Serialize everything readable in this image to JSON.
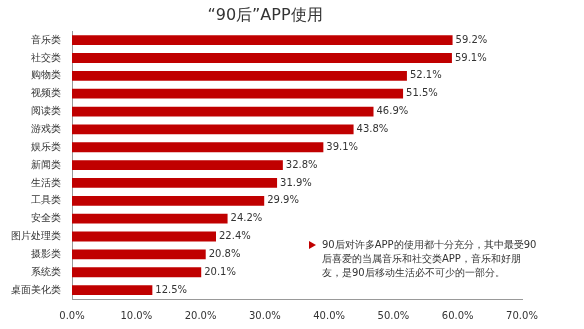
{
  "chart_data": {
    "type": "bar",
    "orientation": "horizontal",
    "title": "“90后”APP使用",
    "categories": [
      "音乐类",
      "社交类",
      "购物类",
      "视频类",
      "阅读类",
      "游戏类",
      "娱乐类",
      "新闻类",
      "生活类",
      "工具类",
      "安全类",
      "图片处理类",
      "摄影类",
      "系统类",
      "桌面美化类"
    ],
    "values": [
      59.2,
      59.1,
      52.1,
      51.5,
      46.9,
      43.8,
      39.1,
      32.8,
      31.9,
      29.9,
      24.2,
      22.4,
      20.8,
      20.1,
      12.5
    ],
    "value_labels": [
      "59.2%",
      "59.1%",
      "52.1%",
      "51.5%",
      "46.9%",
      "43.8%",
      "39.1%",
      "32.8%",
      "31.9%",
      "29.9%",
      "24.2%",
      "22.4%",
      "20.8%",
      "20.1%",
      "12.5%"
    ],
    "data_labels": true,
    "color": "#c00000",
    "xlim": [
      0,
      70
    ],
    "xticks": [
      {
        "value": 0,
        "label": "0.0%"
      },
      {
        "value": 10,
        "label": "10.0%"
      },
      {
        "value": 20,
        "label": "20.0%"
      },
      {
        "value": 30,
        "label": "30.0%"
      },
      {
        "value": 40,
        "label": "40.0%"
      },
      {
        "value": 50,
        "label": "50.0%"
      },
      {
        "value": 60,
        "label": "60.0%"
      },
      {
        "value": 70,
        "label": "70.0%"
      }
    ],
    "grid": false,
    "annotation": "90后对许多APP的使用都十分充分，其中最受90后喜爱的当属音乐和社交类APP，音乐和好朋友，是90后移动生活必不可少的一部分。"
  }
}
